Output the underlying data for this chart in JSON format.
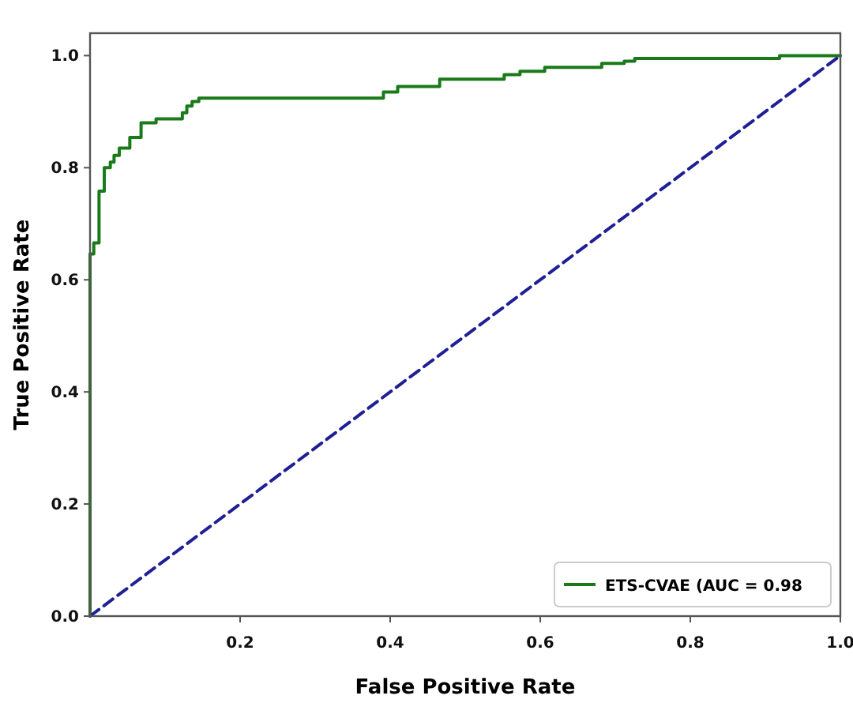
{
  "chart_data": {
    "type": "line",
    "xlabel": "False Positive Rate",
    "ylabel": "True Positive Rate",
    "xlim": [
      0,
      1
    ],
    "ylim": [
      0,
      1.04
    ],
    "xticks": [
      {
        "value": 0.2,
        "label": "0.2"
      },
      {
        "value": 0.4,
        "label": "0.4"
      },
      {
        "value": 0.6,
        "label": "0.6"
      },
      {
        "value": 0.8,
        "label": "0.8"
      },
      {
        "value": 1,
        "label": "1.0"
      }
    ],
    "yticks": [
      {
        "value": 0,
        "label": "0.0"
      },
      {
        "value": 0.2,
        "label": "0.2"
      },
      {
        "value": 0.4,
        "label": "0.4"
      },
      {
        "value": 0.6,
        "label": "0.6"
      },
      {
        "value": 0.8,
        "label": "0.8"
      },
      {
        "value": 1,
        "label": "1.0"
      }
    ],
    "grid": false,
    "legend": "bottom right",
    "marker": "none",
    "series": [
      {
        "name": "ETS-CVAE (AUC = 0.98",
        "color": "#1a7a1a",
        "line_style": "solid",
        "x": [
          0,
          0,
          0.005,
          0.005,
          0.012,
          0.012,
          0.019,
          0.019,
          0.027,
          0.027,
          0.032,
          0.032,
          0.039,
          0.039,
          0.053,
          0.053,
          0.068,
          0.068,
          0.088,
          0.088,
          0.123,
          0.123,
          0.129,
          0.129,
          0.136,
          0.136,
          0.145,
          0.145,
          0.391,
          0.391,
          0.41,
          0.41,
          0.466,
          0.466,
          0.552,
          0.552,
          0.573,
          0.573,
          0.606,
          0.606,
          0.682,
          0.682,
          0.712,
          0.712,
          0.726,
          0.726,
          0.919,
          0.919,
          1
        ],
        "values": [
          0,
          0.646,
          0.646,
          0.666,
          0.666,
          0.758,
          0.758,
          0.8,
          0.8,
          0.81,
          0.81,
          0.822,
          0.822,
          0.835,
          0.835,
          0.854,
          0.854,
          0.88,
          0.88,
          0.887,
          0.887,
          0.898,
          0.898,
          0.91,
          0.91,
          0.918,
          0.918,
          0.924,
          0.924,
          0.935,
          0.935,
          0.945,
          0.945,
          0.958,
          0.958,
          0.966,
          0.966,
          0.972,
          0.972,
          0.979,
          0.979,
          0.986,
          0.986,
          0.99,
          0.99,
          0.995,
          0.995,
          1,
          1
        ]
      },
      {
        "color": "#1f1f96",
        "line_style": "dashed",
        "x": [
          0,
          1
        ],
        "values": [
          0,
          1
        ]
      }
    ]
  }
}
